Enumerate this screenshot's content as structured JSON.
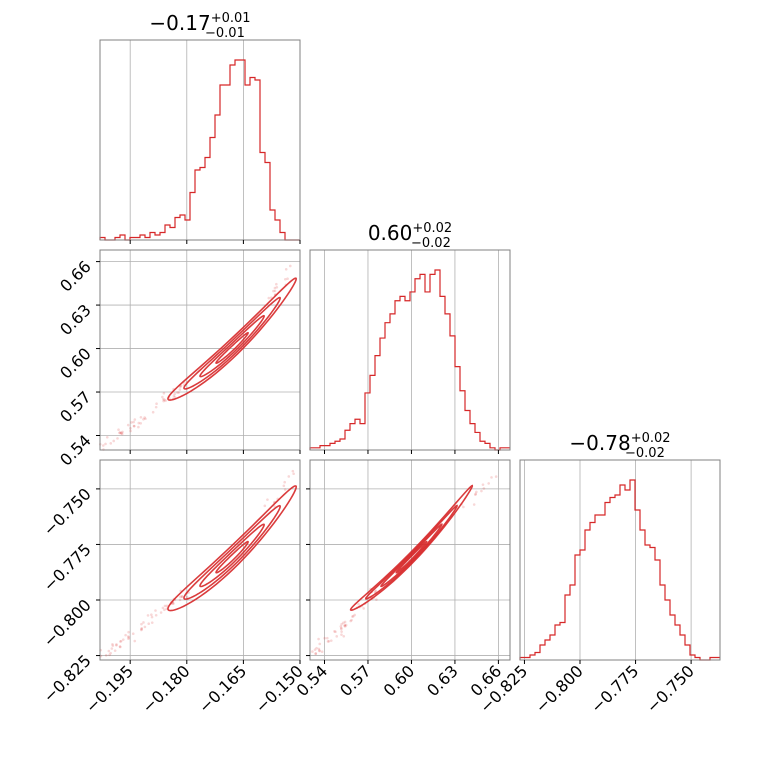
{
  "colors": {
    "series": "#d62728",
    "grid": "#b0b0b0",
    "frame": "#808080",
    "text": "#000000"
  },
  "chart_data": {
    "type": "corner",
    "titles": [
      {
        "value": "−0.17",
        "plus": "+0.01",
        "minus": "−0.01"
      },
      {
        "value": "0.60",
        "plus": "+0.02",
        "minus": "−0.02"
      },
      {
        "value": "−0.78",
        "plus": "+0.02",
        "minus": "−0.02"
      }
    ],
    "ranges": [
      [
        -0.203,
        -0.15
      ],
      [
        0.53,
        0.668
      ],
      [
        -0.827,
        -0.737
      ]
    ],
    "ticks": [
      {
        "values": [
          -0.195,
          -0.18,
          -0.165,
          -0.15
        ],
        "labels": [
          "−0.195",
          "−0.180",
          "−0.165",
          "−0.150"
        ]
      },
      {
        "values": [
          0.54,
          0.57,
          0.6,
          0.63,
          0.66
        ],
        "labels": [
          "0.54",
          "0.57",
          "0.60",
          "0.63",
          "0.66"
        ]
      },
      {
        "values": [
          -0.825,
          -0.8,
          -0.775,
          -0.75
        ],
        "labels": [
          "−0.825",
          "−0.800",
          "−0.775",
          "−0.750"
        ]
      }
    ],
    "histograms": [
      {
        "param": 0,
        "edges_start": -0.203,
        "edges_end": -0.15,
        "counts": [
          1,
          0,
          0,
          1,
          2,
          0,
          1,
          1,
          2,
          1,
          3,
          2,
          3,
          6,
          5,
          9,
          10,
          8,
          19,
          28,
          29,
          33,
          41,
          50,
          62,
          62,
          70,
          72,
          72,
          62,
          65,
          64,
          35,
          31,
          12,
          8,
          3,
          0,
          0,
          0
        ]
      },
      {
        "param": 1,
        "edges_start": 0.53,
        "edges_end": 0.668,
        "counts": [
          1,
          1,
          2,
          2,
          3,
          4,
          5,
          9,
          12,
          14,
          12,
          26,
          34,
          43,
          51,
          58,
          62,
          68,
          70,
          68,
          72,
          78,
          80,
          72,
          80,
          82,
          70,
          62,
          52,
          38,
          27,
          18,
          12,
          8,
          4,
          3,
          1,
          0,
          1,
          1
        ]
      },
      {
        "param": 2,
        "edges_start": -0.827,
        "edges_end": -0.737,
        "counts": [
          1,
          1,
          2,
          3,
          6,
          8,
          10,
          14,
          15,
          26,
          30,
          42,
          44,
          52,
          55,
          58,
          58,
          63,
          65,
          66,
          70,
          68,
          72,
          60,
          52,
          46,
          45,
          40,
          30,
          24,
          18,
          14,
          10,
          6,
          2,
          1,
          0,
          0,
          1,
          1
        ]
      }
    ],
    "correlations": [
      {
        "x_param": 0,
        "y_param": 1,
        "center": [
          -0.168,
          0.6
        ],
        "sigma": [
          0.0085,
          0.021
        ],
        "rho": 0.985,
        "tail_min": [
          -0.203,
          0.53
        ],
        "tail_max": [
          -0.151,
          0.66
        ]
      },
      {
        "x_param": 0,
        "y_param": 2,
        "center": [
          -0.168,
          -0.781
        ],
        "sigma": [
          0.0085,
          0.014
        ],
        "rho": 0.98,
        "tail_min": [
          -0.203,
          -0.826
        ],
        "tail_max": [
          -0.151,
          -0.741
        ]
      },
      {
        "x_param": 1,
        "y_param": 2,
        "center": [
          0.6,
          -0.781
        ],
        "sigma": [
          0.021,
          0.014
        ],
        "rho": 0.995,
        "tail_min": [
          0.53,
          -0.826
        ],
        "tail_max": [
          0.658,
          -0.744
        ]
      }
    ],
    "contour_levels_sigma": [
      0.5,
      1.0,
      1.5,
      2.0
    ],
    "grid": true
  }
}
